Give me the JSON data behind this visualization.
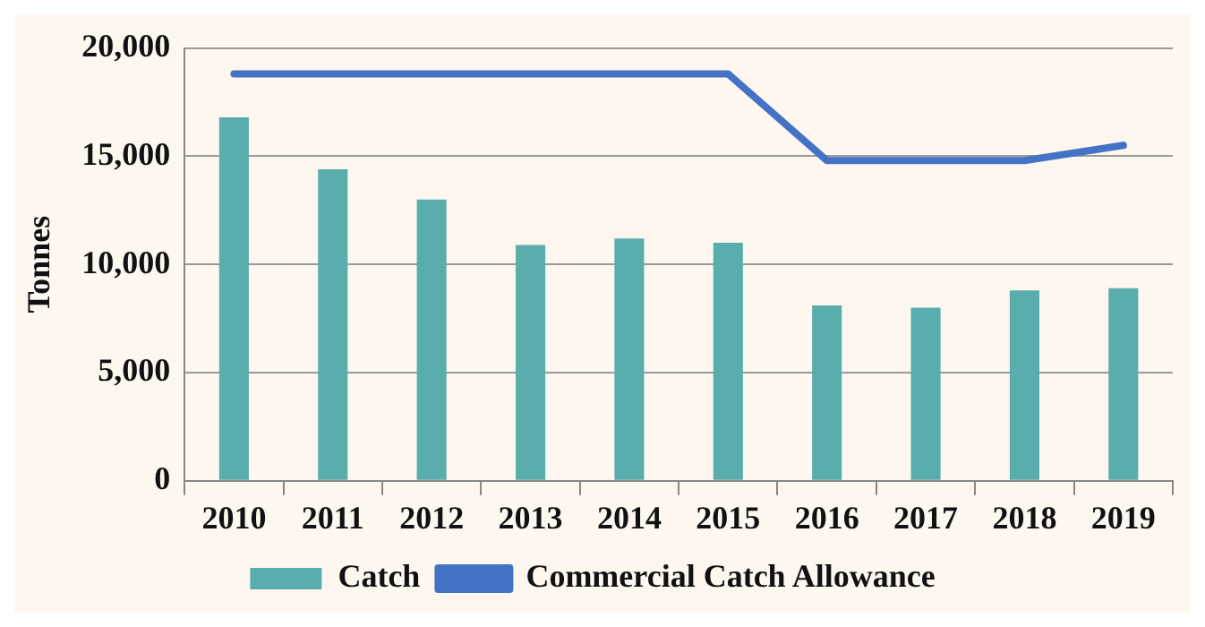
{
  "chart_data": {
    "type": "bar",
    "ylabel": "Tonnes",
    "categories": [
      "2010",
      "2011",
      "2012",
      "2013",
      "2014",
      "2015",
      "2016",
      "2017",
      "2018",
      "2019"
    ],
    "series": [
      {
        "name": "Catch",
        "color": "#5aadad",
        "values": [
          16800,
          14400,
          13000,
          10900,
          11200,
          11000,
          8100,
          8000,
          8800,
          8900
        ]
      },
      {
        "name": "Commercial Catch Allowance",
        "type": "line",
        "color": "#4472c4",
        "values": [
          18800,
          18800,
          18800,
          18800,
          18800,
          18800,
          14800,
          14800,
          14800,
          15500
        ]
      }
    ],
    "ylim": [
      0,
      20000
    ],
    "yticks": [
      0,
      {
        "value": 5000,
        "label": "5,000"
      },
      {
        "value": 10000,
        "label": "10,000"
      },
      {
        "value": 15000,
        "label": "15,000"
      },
      {
        "value": 20000,
        "label": "20,000"
      }
    ],
    "grid": "y",
    "legend": "bottom",
    "marker": "none"
  }
}
